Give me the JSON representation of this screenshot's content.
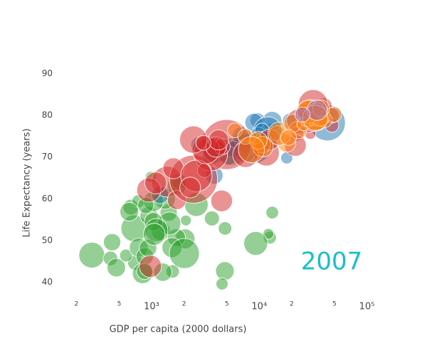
{
  "chart_data": {
    "type": "scatter",
    "x_label": "GDP per capita (2000 dollars)",
    "y_label": "Life Expectancy (years)",
    "annotation": "2007",
    "annotation_color": "#17becf",
    "x_log": true,
    "xlim": [
      132,
      107000
    ],
    "ylim": [
      36,
      94
    ],
    "xticks": [
      {
        "value": 200,
        "label": "2"
      },
      {
        "value": 500,
        "label": "5"
      },
      {
        "value": 1000,
        "label": "10³"
      },
      {
        "value": 2000,
        "label": "2"
      },
      {
        "value": 5000,
        "label": "5"
      },
      {
        "value": 10000,
        "label": "10⁴"
      },
      {
        "value": 20000,
        "label": "2"
      },
      {
        "value": 50000,
        "label": "5"
      },
      {
        "value": 100000,
        "label": "10⁵"
      }
    ],
    "yticks": [
      40,
      50,
      60,
      70,
      80,
      90
    ],
    "series": [
      {
        "color": "#2ca02c",
        "x": [
          6223,
          4797,
          1441,
          12570,
          1217,
          430,
          2042,
          706,
          1704,
          986,
          278,
          3633,
          1545,
          2082,
          5581,
          12154,
          641,
          691,
          13206,
          753,
          1327,
          943,
          579,
          1463,
          1569,
          415,
          12057,
          1044,
          759,
          1043,
          1803,
          10957,
          3820,
          824,
          4811,
          620,
          2014,
          863,
          1712,
          863,
          926,
          9270,
          2602,
          4513,
          1107,
          883,
          7093,
          1056,
          1271,
          470
        ],
        "values": [
          72.3,
          42.7,
          56.7,
          50.7,
          52.3,
          49.6,
          50.4,
          44.7,
          50.7,
          65.2,
          46.5,
          55.3,
          48.3,
          54.8,
          71.3,
          51.6,
          58.0,
          52.9,
          56.7,
          59.4,
          60.0,
          56.0,
          46.4,
          54.1,
          42.6,
          45.7,
          74.0,
          59.4,
          48.3,
          54.5,
          64.2,
          72.8,
          71.2,
          42.1,
          52.9,
          56.9,
          46.9,
          46.2,
          63.1,
          42.6,
          48.2,
          49.3,
          58.6,
          39.6,
          52.5,
          58.4,
          73.9,
          51.5,
          42.4,
          43.5
        ],
        "sizes": [
          33.3,
          12.4,
          8.1,
          1.6,
          14.3,
          8.4,
          17.7,
          4.4,
          10.2,
          0.7,
          64.6,
          3.8,
          18,
          0.5,
          80.3,
          0.55,
          4.9,
          76.5,
          1.45,
          1.7,
          22.9,
          9.9,
          1.5,
          35.6,
          2.0,
          3.2,
          6.0,
          19.2,
          13.3,
          12.0,
          3.3,
          1.25,
          33.8,
          20,
          2.1,
          12.9,
          135,
          8.9,
          12.3,
          6.1,
          9.1,
          44,
          42.3,
          1.1,
          38.1,
          5.7,
          10.3,
          29.2,
          11.7,
          12.3
        ]
      },
      {
        "color": "#1f77b4",
        "x": [
          12779,
          3822,
          9066,
          36319,
          13172,
          7007,
          9645,
          8948,
          6025,
          6873,
          5728,
          5186,
          1202,
          3548,
          7321,
          11978,
          2749,
          9809,
          4173,
          7409,
          19329,
          18009,
          42952,
          10611,
          11416
        ],
        "values": [
          75.3,
          65.6,
          72.4,
          80.7,
          78.6,
          72.9,
          78.8,
          78.3,
          72.2,
          75.0,
          71.9,
          70.3,
          60.9,
          70.2,
          72.6,
          76.2,
          72.9,
          75.5,
          71.8,
          71.4,
          78.7,
          69.8,
          78.2,
          76.4,
          73.7
        ],
        "sizes": [
          40.3,
          9.1,
          190,
          33.4,
          16.3,
          44.2,
          4.1,
          11.4,
          9.3,
          13.8,
          6.9,
          12.6,
          8.5,
          7.5,
          2.8,
          108.7,
          5.7,
          3.2,
          6.7,
          28.7,
          4.0,
          1.06,
          301,
          3.4,
          26.1
        ]
      },
      {
        "color": "#d62728",
        "x": [
          975,
          29796,
          1391,
          1714,
          4959,
          39725,
          2452,
          3541,
          11606,
          4471,
          25523,
          31656,
          4519,
          1593,
          23348,
          47307,
          10461,
          12452,
          3096,
          944,
          1091,
          22316,
          2606,
          3190,
          21655,
          47143,
          3970,
          4185,
          28718,
          7458,
          2442,
          3025,
          2281
        ],
        "values": [
          43.8,
          75.6,
          64.1,
          59.7,
          73.0,
          82.2,
          64.7,
          70.7,
          71.0,
          59.5,
          80.7,
          82.6,
          72.5,
          67.3,
          78.6,
          77.6,
          72.0,
          74.2,
          66.8,
          62.1,
          63.8,
          75.6,
          65.5,
          71.7,
          72.8,
          80.0,
          72.4,
          74.1,
          78.4,
          70.6,
          74.2,
          73.4,
          62.7
        ],
        "sizes": [
          31.9,
          0.7,
          150,
          14.1,
          1319,
          6.98,
          1110,
          223,
          69.5,
          27.5,
          6.4,
          127.5,
          6.05,
          23.3,
          49,
          2.5,
          3.9,
          24.8,
          2.9,
          47.8,
          28.9,
          3.2,
          169,
          91,
          27.6,
          4.55,
          20.4,
          19.3,
          23.2,
          65,
          85.3,
          4.0,
          22.2
        ]
      },
      {
        "color": "#ff7f0e",
        "x": [
          5937,
          36126,
          33693,
          7446,
          10681,
          14619,
          22833,
          35278,
          33207,
          30470,
          32170,
          27538,
          18009,
          36181,
          40676,
          28570,
          9254,
          36798,
          49357,
          15390,
          20510,
          10808,
          9787,
          18678,
          25768,
          28821,
          33860,
          37506,
          8458,
          33203
        ],
        "values": [
          76.4,
          79.8,
          79.4,
          74.9,
          73.0,
          75.7,
          76.5,
          78.3,
          79.3,
          80.7,
          79.4,
          79.5,
          73.3,
          81.8,
          78.9,
          80.5,
          74.5,
          79.8,
          80.2,
          75.6,
          78.1,
          72.5,
          74.0,
          74.7,
          77.9,
          80.9,
          80.9,
          81.7,
          71.8,
          79.4
        ],
        "sizes": [
          3.6,
          8.2,
          10.4,
          4.55,
          7.3,
          4.5,
          10.2,
          5.5,
          5.2,
          61,
          82.4,
          10.7,
          9.96,
          0.3,
          4.1,
          58,
          0.68,
          16.6,
          4.6,
          38.5,
          10.6,
          22.3,
          10.2,
          5.4,
          2.0,
          40.4,
          9.0,
          7.55,
          71.2,
          60.8
        ]
      },
      {
        "color": "#9467bd",
        "x": [
          34435,
          25185
        ],
        "values": [
          81.2,
          80.2
        ],
        "sizes": [
          20.4,
          4.1
        ]
      }
    ]
  }
}
